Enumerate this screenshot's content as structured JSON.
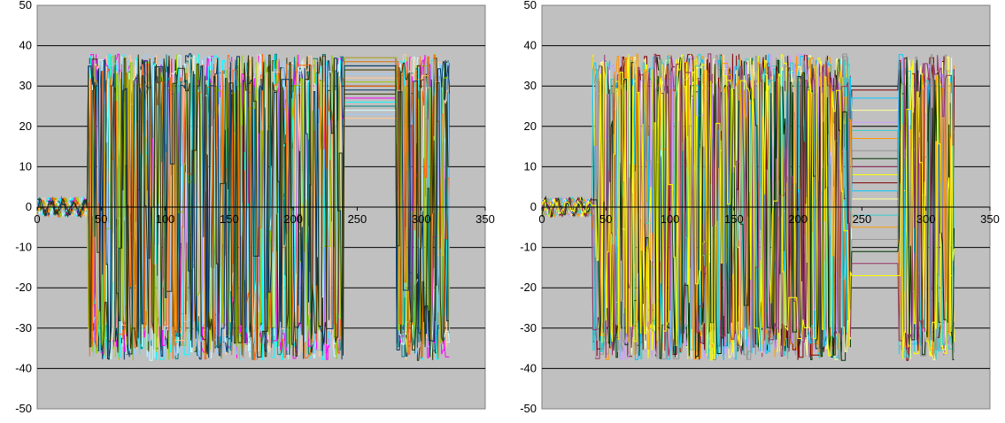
{
  "chart_data": [
    {
      "type": "line",
      "title": "",
      "xlabel": "",
      "ylabel": "",
      "xlim": [
        0,
        350
      ],
      "ylim": [
        -50,
        50
      ],
      "x_ticks": [
        "0",
        "50",
        "100",
        "150",
        "200",
        "250",
        "300",
        "350"
      ],
      "y_ticks": [
        "50",
        "40",
        "30",
        "20",
        "10",
        "0",
        "-10",
        "-20",
        "-30",
        "-40",
        "-50"
      ],
      "grid": "horizontal",
      "legend": "none",
      "plot_background": "#c0c0c0",
      "series_count_estimate": 20,
      "plateau": {
        "x_start": 240,
        "x_end": 280,
        "levels": [
          37,
          36,
          35,
          34,
          33,
          32,
          31,
          30,
          29,
          28,
          27,
          26,
          25,
          24,
          23,
          22
        ]
      },
      "segments": [
        {
          "x_start": 0,
          "x_end": 40,
          "behavior": "small oscillation",
          "y_min": -2,
          "y_max": 4
        },
        {
          "x_start": 40,
          "x_end": 240,
          "behavior": "rapid oscillation",
          "y_min": -38,
          "y_max": 37
        },
        {
          "x_start": 240,
          "x_end": 280,
          "behavior": "flat plateau lines"
        },
        {
          "x_start": 280,
          "x_end": 322,
          "behavior": "rapid oscillation",
          "y_min": -41,
          "y_max": 43
        }
      ]
    },
    {
      "type": "line",
      "title": "",
      "xlabel": "",
      "ylabel": "",
      "xlim": [
        0,
        350
      ],
      "ylim": [
        -50,
        50
      ],
      "x_ticks": [
        "0",
        "50",
        "100",
        "150",
        "200",
        "250",
        "300",
        "350"
      ],
      "y_ticks": [
        "50",
        "40",
        "30",
        "20",
        "10",
        "0",
        "-10",
        "-20",
        "-30",
        "-40",
        "-50"
      ],
      "grid": "horizontal",
      "legend": "none",
      "plot_background": "#c0c0c0",
      "series_count_estimate": 20,
      "plateau": {
        "x_start": 242,
        "x_end": 278,
        "levels": [
          29,
          27,
          24,
          21,
          19,
          17,
          14,
          12,
          10,
          8,
          6,
          4,
          2,
          0,
          -2,
          -5,
          -8,
          -11,
          -14,
          -17,
          -20
        ]
      },
      "segments": [
        {
          "x_start": 0,
          "x_end": 40,
          "behavior": "small oscillation",
          "y_min": -2,
          "y_max": 2
        },
        {
          "x_start": 40,
          "x_end": 240,
          "behavior": "rapid oscillation",
          "y_min": -38,
          "y_max": 38
        },
        {
          "x_start": 240,
          "x_end": 280,
          "behavior": "flat plateau lines"
        },
        {
          "x_start": 280,
          "x_end": 322,
          "behavior": "rapid oscillation",
          "y_min": -42,
          "y_max": 42
        }
      ]
    }
  ],
  "palette": [
    "#ff00ff",
    "#000080",
    "#ffff00",
    "#00ffff",
    "#800080",
    "#800000",
    "#008080",
    "#0000ff",
    "#00ccff",
    "#ccffff",
    "#ccffcc",
    "#ffff99",
    "#99ccff",
    "#ff99cc",
    "#cc99ff",
    "#ffcc99",
    "#3366ff",
    "#33cccc",
    "#99cc00",
    "#ffcc00",
    "#ff9900",
    "#ff6600",
    "#666699",
    "#969696",
    "#003366",
    "#339966",
    "#003300",
    "#333300",
    "#993300",
    "#993366"
  ]
}
